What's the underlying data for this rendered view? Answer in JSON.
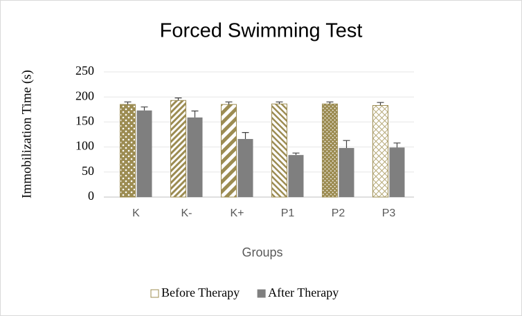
{
  "chart_data": {
    "type": "bar",
    "title": "Forced Swimming Test",
    "x_label": "Groups",
    "y_label": "Immobilization Time (s)",
    "categories": [
      "K",
      "K-",
      "K+",
      "P1",
      "P2",
      "P3"
    ],
    "series": [
      {
        "name": "Before Therapy",
        "color": "#9c8c52",
        "values": [
          185,
          193,
          185,
          186,
          186,
          183
        ],
        "errors": [
          5,
          5,
          5,
          4,
          4,
          6
        ]
      },
      {
        "name": "After Therapy",
        "color": "#7f7f7f",
        "values": [
          173,
          159,
          116,
          84,
          98,
          99
        ],
        "errors": [
          7,
          13,
          13,
          4,
          15,
          9
        ]
      }
    ],
    "ylim": [
      0,
      250
    ],
    "yticks": [
      0,
      50,
      100,
      150,
      200,
      250
    ],
    "grid": true,
    "legend": "bottom"
  }
}
